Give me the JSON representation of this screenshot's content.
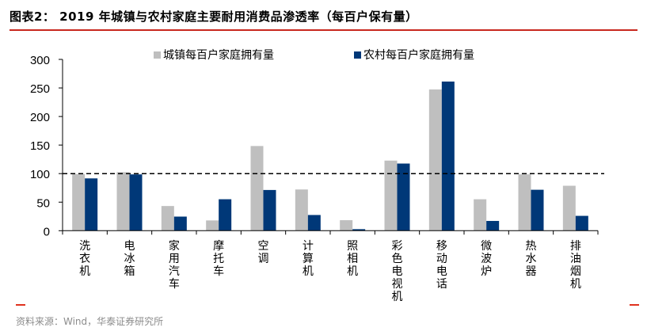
{
  "header": {
    "title": "图表2：  2019 年城镇与农村家庭主要耐用消费品渗透率（每百户保有量）"
  },
  "footer": {
    "source": "资料来源：Wind，华泰证券研究所"
  },
  "colors": {
    "urban": "#bfbfbf",
    "rural": "#003878",
    "accent_rule": "#c8281e",
    "reference_line": "#000000"
  },
  "chart_data": {
    "type": "bar",
    "title": "2019 年城镇与农村家庭主要耐用消费品渗透率（每百户保有量）",
    "xlabel": "",
    "ylabel": "",
    "ylim": [
      0,
      300
    ],
    "yticks": [
      0,
      50,
      100,
      150,
      200,
      250,
      300
    ],
    "grid": false,
    "legend_position": "top",
    "reference_line": {
      "y": 100,
      "style": "dashed"
    },
    "categories": [
      "洗衣机",
      "电冰箱",
      "家用汽车",
      "摩托车",
      "空调",
      "计算机",
      "照相机",
      "彩色电视机",
      "移动电话",
      "微波炉",
      "热水器",
      "排油烟机"
    ],
    "series": [
      {
        "name": "城镇每百户家庭拥有量",
        "color": "#bfbfbf",
        "values": [
          99.2,
          102.5,
          43.2,
          18.0,
          148.3,
          72.2,
          18.4,
          122.8,
          247.4,
          55.1,
          98.7,
          78.7
        ]
      },
      {
        "name": "农村每百户家庭拥有量",
        "color": "#003878",
        "values": [
          91.6,
          98.6,
          24.7,
          55.1,
          71.3,
          27.5,
          2.7,
          117.6,
          261.2,
          17.1,
          71.7,
          26.0
        ]
      }
    ]
  }
}
